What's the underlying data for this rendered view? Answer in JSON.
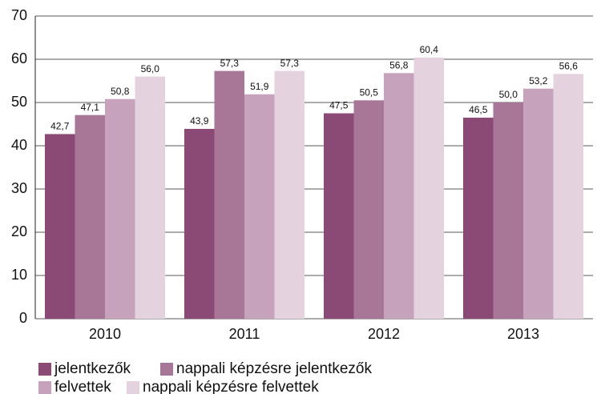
{
  "chart_data": {
    "type": "bar",
    "categories": [
      "2010",
      "2011",
      "2012",
      "2013"
    ],
    "series": [
      {
        "name": "jelentkezők",
        "color": "#8b4a75",
        "values": [
          42.7,
          43.9,
          47.5,
          46.5
        ],
        "value_labels": [
          "42,7",
          "43,9",
          "47,5",
          "46,5"
        ]
      },
      {
        "name": "nappali képzésre jelentkezők",
        "color": "#a87696",
        "values": [
          47.1,
          57.3,
          50.5,
          50.0
        ],
        "value_labels": [
          "47,1",
          "57,3",
          "50,5",
          "50,0"
        ]
      },
      {
        "name": "felvettek",
        "color": "#c7a2bc",
        "values": [
          50.8,
          51.9,
          56.8,
          53.2
        ],
        "value_labels": [
          "50,8",
          "51,9",
          "56,8",
          "53,2"
        ]
      },
      {
        "name": "nappali képzésre felvettek",
        "color": "#e4d2de",
        "values": [
          56.0,
          57.3,
          60.4,
          56.6
        ],
        "value_labels": [
          "56,0",
          "57,3",
          "60,4",
          "56,6"
        ]
      }
    ],
    "ylim": [
      0,
      70
    ],
    "yticks": [
      0,
      10,
      20,
      30,
      40,
      50,
      60,
      70
    ],
    "grid": true,
    "legend": "bottom"
  }
}
